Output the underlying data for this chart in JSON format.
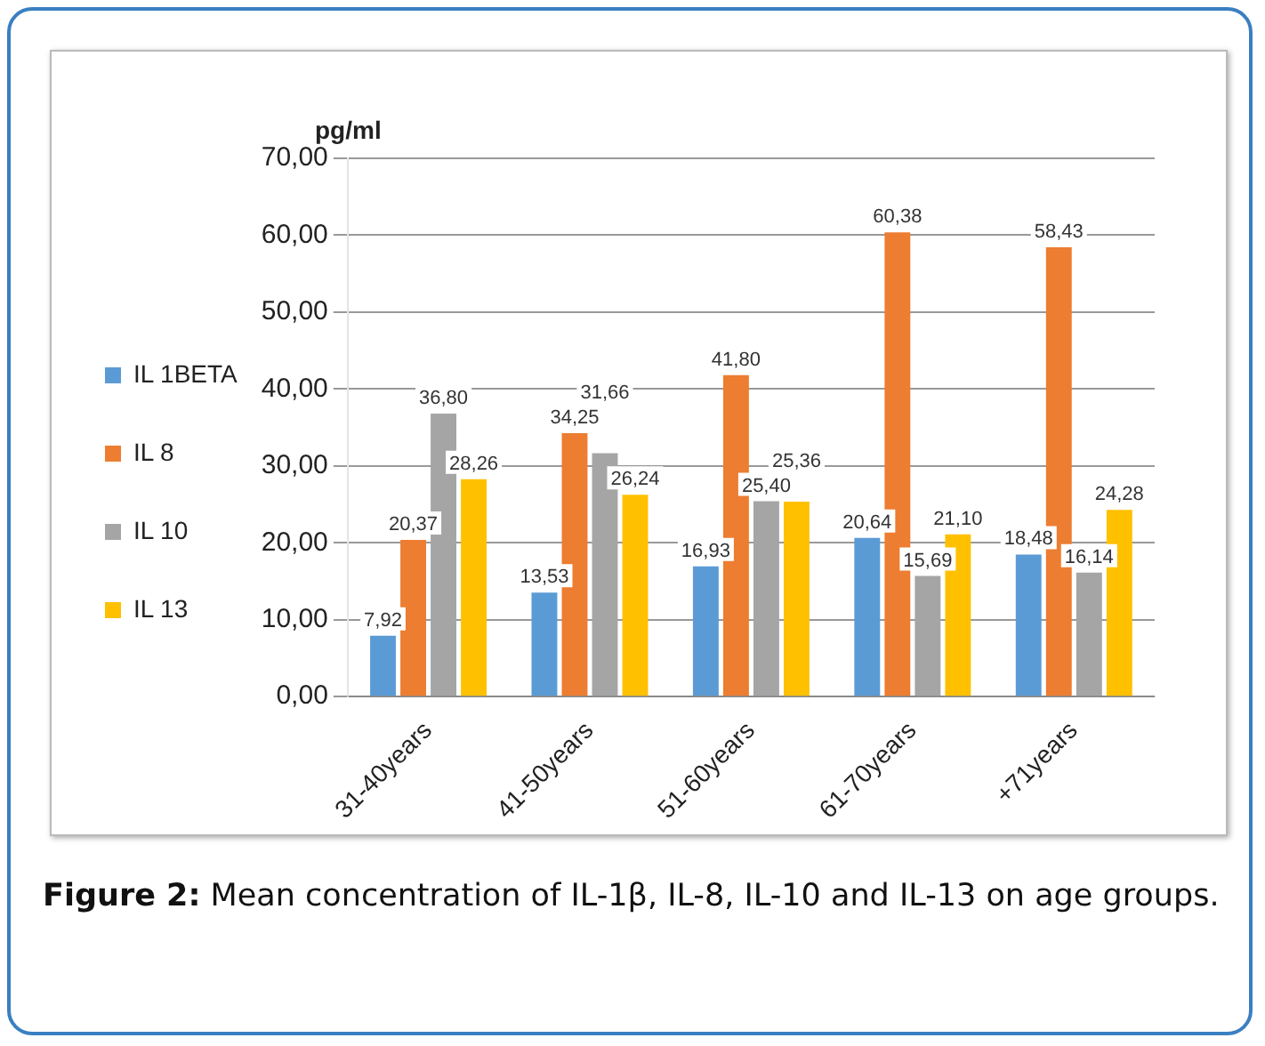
{
  "chart_data": {
    "type": "bar",
    "ylabel": "pg/ml",
    "categories": [
      "31-40years",
      "41-50years",
      "51-60years",
      "61-70years",
      "+71years"
    ],
    "series": [
      {
        "name": "IL 1BETA",
        "color": "#5b9bd5",
        "values": [
          7.92,
          13.53,
          16.93,
          20.64,
          18.48
        ],
        "value_labels": [
          "7,92",
          "13,53",
          "16,93",
          "20,64",
          "18,48"
        ]
      },
      {
        "name": "IL 8",
        "color": "#ed7d31",
        "values": [
          20.37,
          34.25,
          41.8,
          60.38,
          58.43
        ],
        "value_labels": [
          "20,37",
          "34,25",
          "41,80",
          "60,38",
          "58,43"
        ]
      },
      {
        "name": "IL 10",
        "color": "#a5a5a5",
        "values": [
          36.8,
          31.66,
          25.4,
          15.69,
          16.14
        ],
        "value_labels": [
          "36,80",
          "31,66",
          "25,40",
          "15,69",
          "16,14"
        ]
      },
      {
        "name": "IL 13",
        "color": "#ffc000",
        "values": [
          28.26,
          26.24,
          25.36,
          21.1,
          24.28
        ],
        "value_labels": [
          "28,26",
          "26,24",
          "25,36",
          "21,10",
          "24,28"
        ]
      }
    ],
    "ylim": [
      0,
      70
    ],
    "yticks": [
      {
        "value": 0,
        "label": "0,00"
      },
      {
        "value": 10,
        "label": "10,00"
      },
      {
        "value": 20,
        "label": "20,00"
      },
      {
        "value": 30,
        "label": "30,00"
      },
      {
        "value": 40,
        "label": "40,00"
      },
      {
        "value": 50,
        "label": "50,00"
      },
      {
        "value": 60,
        "label": "60,00"
      },
      {
        "value": 70,
        "label": "70,00"
      }
    ],
    "grid": "y",
    "legend": "left",
    "annotations": [
      "Figure 2: Mean concentration of IL-1β, IL-8, IL-10 and IL-13 on age groups."
    ]
  }
}
